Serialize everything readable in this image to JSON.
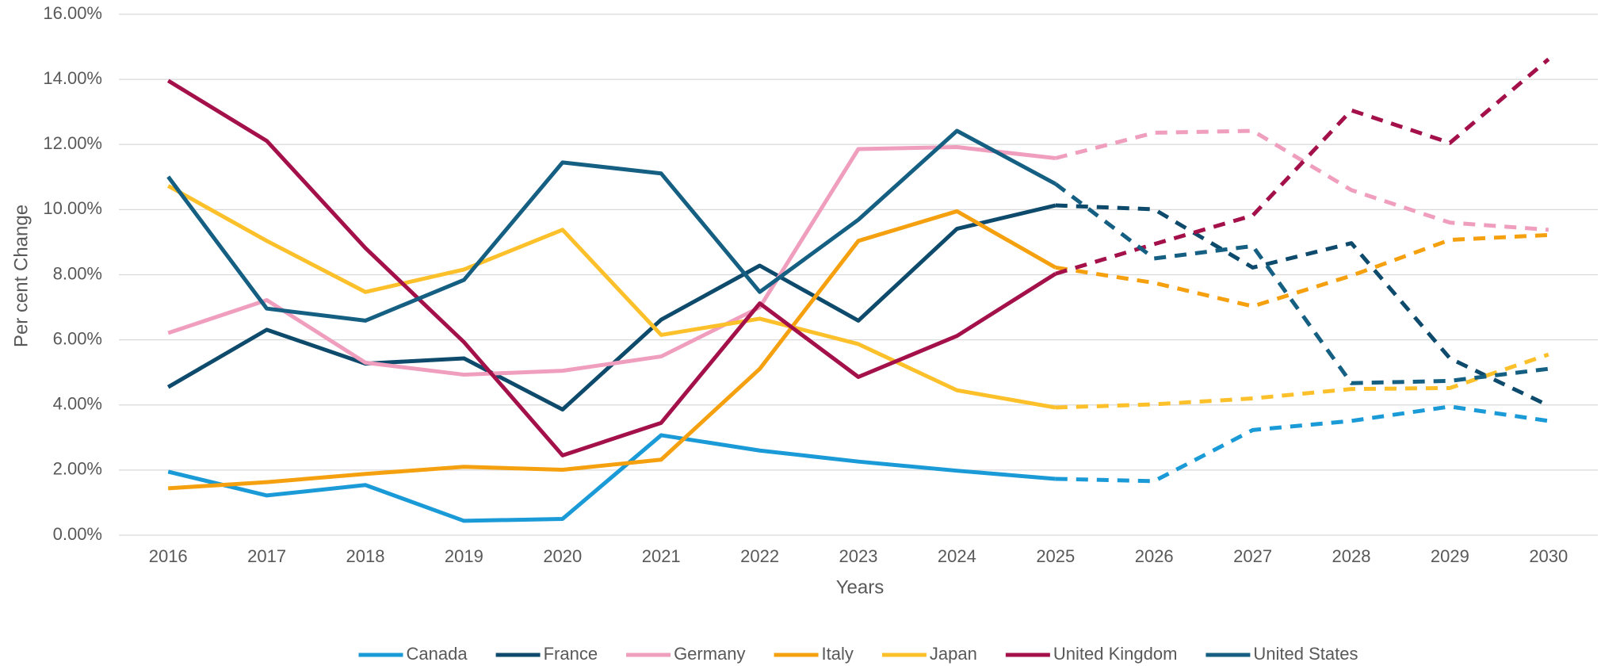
{
  "chart_data": {
    "type": "line",
    "xlabel": "Years",
    "ylabel": "Per cent Change",
    "categories": [
      "2016",
      "2017",
      "2018",
      "2019",
      "2020",
      "2021",
      "2022",
      "2023",
      "2024",
      "2025",
      "2026",
      "2027",
      "2028",
      "2029",
      "2030"
    ],
    "dashed_from": "2025",
    "series": [
      {
        "name": "Canada",
        "color": "#1a9ad6",
        "values": [
          1.95,
          1.22,
          1.54,
          0.44,
          0.5,
          3.07,
          2.6,
          2.26,
          1.98,
          1.73,
          1.66,
          3.23,
          3.51,
          3.95,
          3.51
        ]
      },
      {
        "name": "France",
        "color": "#0d4a6b",
        "values": [
          4.55,
          6.31,
          5.27,
          5.43,
          3.86,
          6.62,
          8.28,
          6.59,
          9.41,
          10.13,
          10.01,
          8.22,
          8.97,
          5.43,
          3.98
        ]
      },
      {
        "name": "Germany",
        "color": "#f09ebd",
        "values": [
          6.21,
          7.22,
          5.3,
          4.93,
          5.05,
          5.49,
          7.0,
          11.86,
          11.92,
          11.58,
          12.36,
          12.42,
          10.6,
          9.6,
          9.38
        ]
      },
      {
        "name": "Italy",
        "color": "#f5a00f",
        "values": [
          1.44,
          1.63,
          1.88,
          2.1,
          2.01,
          2.32,
          5.11,
          9.04,
          9.95,
          8.22,
          7.75,
          7.03,
          7.97,
          9.07,
          9.22
        ]
      },
      {
        "name": "Japan",
        "color": "#fcc02a",
        "values": [
          10.73,
          9.04,
          7.47,
          8.16,
          9.38,
          6.15,
          6.65,
          5.87,
          4.45,
          3.92,
          4.02,
          4.2,
          4.49,
          4.52,
          5.55
        ]
      },
      {
        "name": "United Kingdom",
        "color": "#a3104a",
        "values": [
          13.96,
          12.11,
          8.82,
          5.93,
          2.45,
          3.45,
          7.12,
          4.86,
          6.12,
          8.03,
          8.94,
          9.82,
          13.05,
          12.05,
          14.62
        ]
      },
      {
        "name": "United States",
        "color": "#145f82",
        "values": [
          11.01,
          6.96,
          6.59,
          7.84,
          11.45,
          11.11,
          7.47,
          9.69,
          12.42,
          10.79,
          8.5,
          8.88,
          4.67,
          4.74,
          5.11
        ]
      }
    ],
    "ylim": [
      0,
      16
    ],
    "yticks": [
      {
        "value": 0,
        "label": "0.00%"
      },
      {
        "value": 2,
        "label": "2.00%"
      },
      {
        "value": 4,
        "label": "4.00%"
      },
      {
        "value": 6,
        "label": "6.00%"
      },
      {
        "value": 8,
        "label": "8.00%"
      },
      {
        "value": 10,
        "label": "10.00%"
      },
      {
        "value": 12,
        "label": "12.00%"
      },
      {
        "value": 14,
        "label": "14.00%"
      },
      {
        "value": 16,
        "label": "16.00%"
      }
    ],
    "grid": true,
    "legend": "bottom"
  }
}
